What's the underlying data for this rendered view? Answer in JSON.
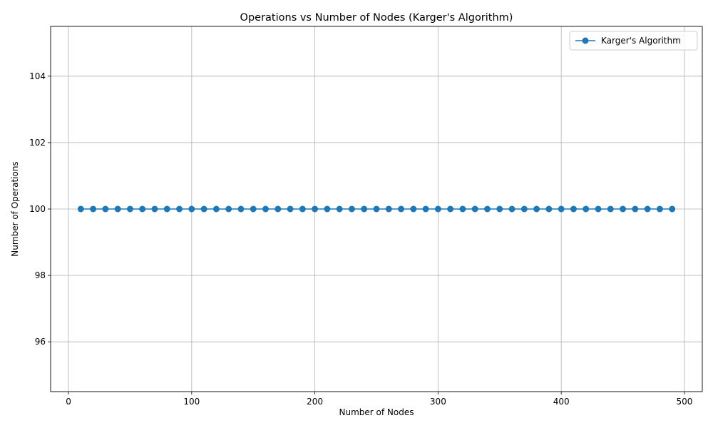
{
  "chart_data": {
    "type": "line",
    "title": "Operations vs Number of Nodes (Karger's Algorithm)",
    "xlabel": "Number of Nodes",
    "ylabel": "Number of Operations",
    "xlim": [
      -14.5,
      514.5
    ],
    "ylim": [
      94.5,
      105.5
    ],
    "xticks": [
      0,
      100,
      200,
      300,
      400,
      500
    ],
    "yticks": [
      96,
      98,
      100,
      102,
      104
    ],
    "grid": true,
    "legend_position": "top-right",
    "series": [
      {
        "name": "Karger's Algorithm",
        "color": "#1f77b4",
        "marker": "circle",
        "x": [
          10,
          20,
          30,
          40,
          50,
          60,
          70,
          80,
          90,
          100,
          110,
          120,
          130,
          140,
          150,
          160,
          170,
          180,
          190,
          200,
          210,
          220,
          230,
          240,
          250,
          260,
          270,
          280,
          290,
          300,
          310,
          320,
          330,
          340,
          350,
          360,
          370,
          380,
          390,
          400,
          410,
          420,
          430,
          440,
          450,
          460,
          470,
          480,
          490
        ],
        "y": [
          100,
          100,
          100,
          100,
          100,
          100,
          100,
          100,
          100,
          100,
          100,
          100,
          100,
          100,
          100,
          100,
          100,
          100,
          100,
          100,
          100,
          100,
          100,
          100,
          100,
          100,
          100,
          100,
          100,
          100,
          100,
          100,
          100,
          100,
          100,
          100,
          100,
          100,
          100,
          100,
          100,
          100,
          100,
          100,
          100,
          100,
          100,
          100,
          100
        ]
      }
    ]
  }
}
